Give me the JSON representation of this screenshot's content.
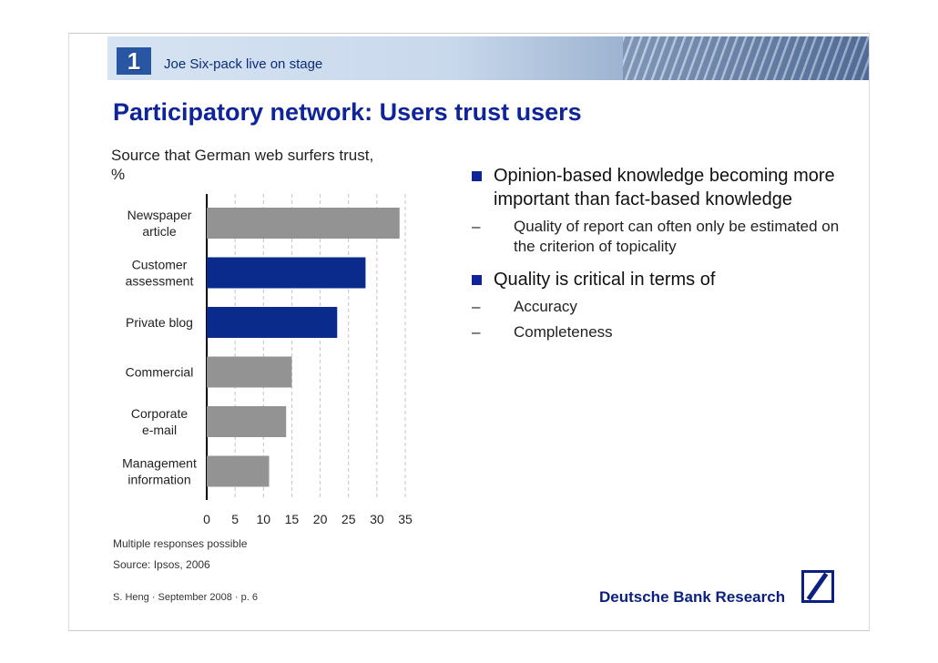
{
  "header": {
    "section_number": "1",
    "section_title": "Joe Six-pack live on stage",
    "page_title": "Participatory network: Users trust users"
  },
  "chart_data": {
    "type": "bar",
    "orientation": "horizontal",
    "title": "Source that German web surfers trust, %",
    "categories": [
      [
        "Newspaper",
        "article"
      ],
      [
        "Customer",
        "assessment"
      ],
      [
        "Private blog"
      ],
      [
        "Commercial"
      ],
      [
        "Corporate",
        "e-mail"
      ],
      [
        "Management",
        "information"
      ]
    ],
    "values": [
      34,
      28,
      23,
      15,
      14,
      11
    ],
    "highlighted": [
      false,
      true,
      true,
      false,
      false,
      false
    ],
    "colors": {
      "default": "#939393",
      "highlight": "#0a2a8c"
    },
    "xlim": [
      0,
      35
    ],
    "xticks": [
      "0",
      "5",
      "10",
      "15",
      "20",
      "25",
      "30",
      "35"
    ],
    "grid": "vertical-dashed",
    "xlabel": "",
    "ylabel": ""
  },
  "notes": {
    "multiple": "Multiple responses possible",
    "source": "Source: Ipsos, 2006"
  },
  "bullets": [
    {
      "text": "Opinion-based knowledge becoming more important than fact-based knowledge",
      "sub": [
        "Quality of report can often only be estimated on the criterion of topicality"
      ]
    },
    {
      "text": "Quality is critical in terms of",
      "sub": [
        "Accuracy",
        "Completeness"
      ]
    }
  ],
  "footer": {
    "credit": "S. Heng · September 2008 ·  p. 6",
    "brand": "Deutsche Bank Research",
    "dash": "–"
  }
}
